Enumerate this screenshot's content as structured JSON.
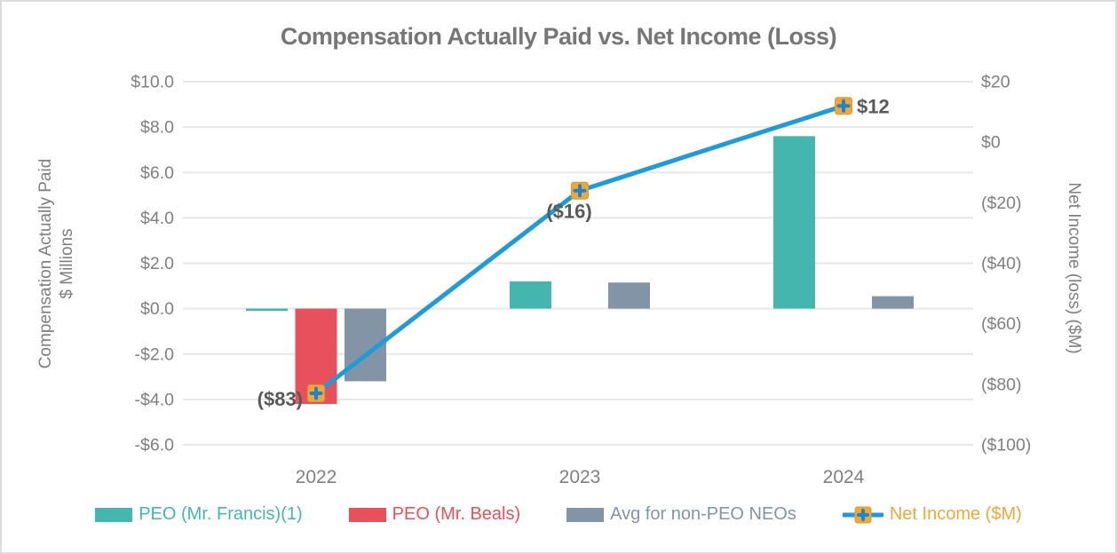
{
  "title": "Compensation Actually Paid vs. Net Income (Loss)",
  "colors": {
    "teal": "#45b6ae",
    "red": "#e8505b",
    "gray_blue": "#8394a6",
    "line_blue": "#209bd8",
    "marker_orange": "#efa63b",
    "marker_orange_border": "#dd9832",
    "marker_plus_blue": "#1d86c8",
    "axis_text": "#7f7f7f",
    "data_label_text": "#595959",
    "gridline": "#e6e6e6"
  },
  "chart_data": {
    "type": "combo-bar-line",
    "categories": [
      "2022",
      "2023",
      "2024"
    ],
    "bar_series": [
      {
        "name": "PEO (Mr. Francis)(1)",
        "color": "#45b6ae",
        "axis": "left",
        "values": [
          -0.1,
          1.2,
          7.6
        ]
      },
      {
        "name": "PEO (Mr. Beals)",
        "color": "#e8505b",
        "axis": "left",
        "values": [
          -4.2,
          null,
          null
        ]
      },
      {
        "name": "Avg for non-PEO NEOs",
        "color": "#8394a6",
        "axis": "left",
        "values": [
          -3.2,
          1.15,
          0.55
        ]
      }
    ],
    "line_series": {
      "name": "Net Income ($M)",
      "color": "#209bd8",
      "marker_color": "#efa63b",
      "axis": "right",
      "values": [
        -83,
        -16,
        12
      ],
      "point_labels": [
        "($83)",
        "($16)",
        "$12"
      ]
    },
    "left_axis": {
      "title_line1": "Compensation Actually Paid",
      "title_line2": "$ Millions",
      "ticks": [
        "$10.0",
        "$8.0",
        "$6.0",
        "$4.0",
        "$2.0",
        "$0.0",
        "-$2.0",
        "-$4.0",
        "-$6.0"
      ],
      "tick_values": [
        10,
        8,
        6,
        4,
        2,
        0,
        -2,
        -4,
        -6
      ],
      "min": -6,
      "max": 10
    },
    "right_axis": {
      "title": "Net Income (loss) ($M)",
      "ticks": [
        "$20",
        "$0",
        "($20)",
        "($40)",
        "($60)",
        "($80)",
        "($100)"
      ],
      "tick_values": [
        20,
        0,
        -20,
        -40,
        -60,
        -80,
        -100
      ],
      "min": -100,
      "max": 20
    },
    "grid": true,
    "legend_position": "bottom"
  },
  "legend": {
    "items": [
      {
        "label": "PEO (Mr. Francis)(1)",
        "color": "#45b6ae",
        "marker": "swatch"
      },
      {
        "label": "PEO (Mr. Beals)",
        "color": "#e8505b",
        "marker": "swatch"
      },
      {
        "label": "Avg for non-PEO NEOs",
        "color": "#8394a6",
        "marker": "swatch"
      },
      {
        "label": "Net Income ($M)",
        "color": "#efa63b",
        "line_color": "#209bd8",
        "marker": "line-plus"
      }
    ]
  }
}
